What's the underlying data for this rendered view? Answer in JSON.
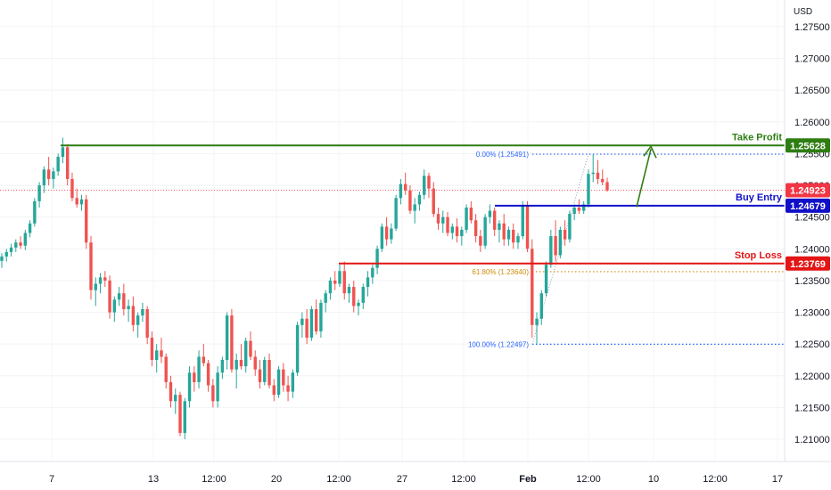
{
  "currency": "USD",
  "chart_data": {
    "type": "candlestick",
    "title": "",
    "x_ticks": [
      "7",
      "13",
      "12:00",
      "20",
      "12:00",
      "27",
      "12:00",
      "Feb",
      "12:00",
      "10",
      "12:00",
      "17"
    ],
    "y_ticks": [
      "1.27500",
      "1.27000",
      "1.26500",
      "1.26000",
      "1.25500",
      "1.25000",
      "1.24500",
      "1.24000",
      "1.23500",
      "1.23000",
      "1.22500",
      "1.22000",
      "1.21500",
      "1.21000"
    ],
    "ylim": [
      1.2065,
      1.2792
    ],
    "colors": {
      "up": "#26a69a",
      "down": "#ef5350",
      "take_profit": "#2e7d12",
      "buy_entry": "#1010c8",
      "stop_loss": "#e31515",
      "fib": "#2962ff",
      "fib_618": "#d08b0a",
      "current": "#f23645"
    },
    "levels": [
      {
        "name": "Take Profit",
        "price": "1.25628",
        "value": 1.25628,
        "color": "#2e7d12"
      },
      {
        "name": "Buy Entry",
        "price": "1.24679",
        "value": 1.24679,
        "color": "#1010c8"
      },
      {
        "name": "Stop Loss",
        "price": "1.23769",
        "value": 1.23769,
        "color": "#e31515"
      }
    ],
    "current_price": {
      "price": "1.24923",
      "value": 1.24923
    },
    "fibonacci": [
      {
        "label": "0.00% (1.25491)",
        "value": 1.25491
      },
      {
        "label": "61.80% (1.23640)",
        "value": 1.2364
      },
      {
        "label": "100.00% (1.22497)",
        "value": 1.22497
      }
    ],
    "candles": [
      [
        1.2381,
        1.2393,
        1.237,
        1.2388
      ],
      [
        1.2388,
        1.24,
        1.238,
        1.2395
      ],
      [
        1.2395,
        1.2408,
        1.2388,
        1.2402
      ],
      [
        1.2402,
        1.2415,
        1.2395,
        1.241
      ],
      [
        1.241,
        1.242,
        1.24,
        1.2405
      ],
      [
        1.2405,
        1.243,
        1.2398,
        1.2425
      ],
      [
        1.2425,
        1.2445,
        1.2418,
        1.244
      ],
      [
        1.244,
        1.248,
        1.2435,
        1.2475
      ],
      [
        1.2475,
        1.2505,
        1.2465,
        1.25
      ],
      [
        1.25,
        1.253,
        1.2488,
        1.2525
      ],
      [
        1.2525,
        1.2545,
        1.25,
        1.251
      ],
      [
        1.251,
        1.2528,
        1.2495,
        1.2522
      ],
      [
        1.2522,
        1.255,
        1.2515,
        1.2545
      ],
      [
        1.2545,
        1.2575,
        1.2535,
        1.256
      ],
      [
        1.256,
        1.2565,
        1.25,
        1.251
      ],
      [
        1.251,
        1.252,
        1.2475,
        1.248
      ],
      [
        1.248,
        1.2495,
        1.2465,
        1.247
      ],
      [
        1.247,
        1.2485,
        1.246,
        1.2478
      ],
      [
        1.2478,
        1.2485,
        1.24,
        1.241
      ],
      [
        1.241,
        1.242,
        1.232,
        1.2335
      ],
      [
        1.2335,
        1.2355,
        1.231,
        1.2345
      ],
      [
        1.2345,
        1.2362,
        1.233,
        1.2355
      ],
      [
        1.2355,
        1.2365,
        1.234,
        1.235
      ],
      [
        1.235,
        1.2358,
        1.229,
        1.23
      ],
      [
        1.23,
        1.2325,
        1.2285,
        1.232
      ],
      [
        1.232,
        1.234,
        1.231,
        1.233
      ],
      [
        1.233,
        1.2345,
        1.2295,
        1.2305
      ],
      [
        1.2305,
        1.232,
        1.2285,
        1.231
      ],
      [
        1.231,
        1.2325,
        1.227,
        1.228
      ],
      [
        1.228,
        1.23,
        1.226,
        1.2295
      ],
      [
        1.2295,
        1.2315,
        1.2285,
        1.2305
      ],
      [
        1.2305,
        1.231,
        1.225,
        1.226
      ],
      [
        1.226,
        1.227,
        1.2215,
        1.2225
      ],
      [
        1.2225,
        1.225,
        1.2205,
        1.224
      ],
      [
        1.224,
        1.226,
        1.222,
        1.223
      ],
      [
        1.223,
        1.2235,
        1.218,
        1.219
      ],
      [
        1.219,
        1.22,
        1.215,
        1.216
      ],
      [
        1.216,
        1.218,
        1.214,
        1.217
      ],
      [
        1.217,
        1.2175,
        1.2105,
        1.211
      ],
      [
        1.211,
        1.2165,
        1.21,
        1.216
      ],
      [
        1.216,
        1.2215,
        1.215,
        1.2205
      ],
      [
        1.2205,
        1.2215,
        1.2175,
        1.219
      ],
      [
        1.219,
        1.224,
        1.218,
        1.223
      ],
      [
        1.223,
        1.225,
        1.2215,
        1.222
      ],
      [
        1.222,
        1.2225,
        1.2175,
        1.2185
      ],
      [
        1.2185,
        1.2195,
        1.215,
        1.216
      ],
      [
        1.216,
        1.2215,
        1.215,
        1.2205
      ],
      [
        1.2205,
        1.223,
        1.2195,
        1.2225
      ],
      [
        1.2225,
        1.23,
        1.221,
        1.2295
      ],
      [
        1.2295,
        1.2305,
        1.2205,
        1.221
      ],
      [
        1.221,
        1.2235,
        1.218,
        1.2225
      ],
      [
        1.2225,
        1.225,
        1.221,
        1.2215
      ],
      [
        1.2215,
        1.226,
        1.2205,
        1.2255
      ],
      [
        1.2255,
        1.227,
        1.2225,
        1.223
      ],
      [
        1.223,
        1.224,
        1.22,
        1.221
      ],
      [
        1.221,
        1.2225,
        1.218,
        1.219
      ],
      [
        1.219,
        1.223,
        1.2185,
        1.2225
      ],
      [
        1.2225,
        1.2235,
        1.218,
        1.2185
      ],
      [
        1.2185,
        1.2195,
        1.216,
        1.217
      ],
      [
        1.217,
        1.2215,
        1.2165,
        1.221
      ],
      [
        1.221,
        1.222,
        1.2175,
        1.2185
      ],
      [
        1.2185,
        1.22,
        1.216,
        1.2175
      ],
      [
        1.2175,
        1.221,
        1.2165,
        1.2205
      ],
      [
        1.2205,
        1.2285,
        1.22,
        1.228
      ],
      [
        1.228,
        1.23,
        1.226,
        1.229
      ],
      [
        1.229,
        1.2305,
        1.225,
        1.226
      ],
      [
        1.226,
        1.231,
        1.2255,
        1.2305
      ],
      [
        1.2305,
        1.232,
        1.2265,
        1.227
      ],
      [
        1.227,
        1.232,
        1.226,
        1.2315
      ],
      [
        1.2315,
        1.2335,
        1.23,
        1.233
      ],
      [
        1.233,
        1.2355,
        1.232,
        1.235
      ],
      [
        1.235,
        1.2365,
        1.2335,
        1.2345
      ],
      [
        1.2345,
        1.2375,
        1.234,
        1.2365
      ],
      [
        1.2365,
        1.238,
        1.232,
        1.233
      ],
      [
        1.233,
        1.2345,
        1.2315,
        1.234
      ],
      [
        1.234,
        1.235,
        1.23,
        1.231
      ],
      [
        1.231,
        1.232,
        1.2295,
        1.2315
      ],
      [
        1.2315,
        1.2345,
        1.2305,
        1.234
      ],
      [
        1.234,
        1.2365,
        1.2325,
        1.2355
      ],
      [
        1.2355,
        1.2375,
        1.2345,
        1.237
      ],
      [
        1.237,
        1.2405,
        1.236,
        1.24
      ],
      [
        1.24,
        1.244,
        1.2395,
        1.2435
      ],
      [
        1.2435,
        1.245,
        1.2405,
        1.2415
      ],
      [
        1.2415,
        1.244,
        1.2408,
        1.2432
      ],
      [
        1.2432,
        1.2485,
        1.2428,
        1.248
      ],
      [
        1.248,
        1.251,
        1.247,
        1.2502
      ],
      [
        1.2502,
        1.252,
        1.2485,
        1.2492
      ],
      [
        1.2492,
        1.25,
        1.2455,
        1.246
      ],
      [
        1.246,
        1.248,
        1.244,
        1.247
      ],
      [
        1.247,
        1.249,
        1.246,
        1.2485
      ],
      [
        1.2485,
        1.2525,
        1.2478,
        1.2515
      ],
      [
        1.2515,
        1.252,
        1.248,
        1.2495
      ],
      [
        1.2495,
        1.2505,
        1.245,
        1.2455
      ],
      [
        1.2455,
        1.2465,
        1.243,
        1.244
      ],
      [
        1.244,
        1.246,
        1.2425,
        1.245
      ],
      [
        1.245,
        1.2458,
        1.242,
        1.2425
      ],
      [
        1.2425,
        1.244,
        1.2415,
        1.2435
      ],
      [
        1.2435,
        1.2448,
        1.241,
        1.242
      ],
      [
        1.242,
        1.2435,
        1.2405,
        1.243
      ],
      [
        1.243,
        1.247,
        1.2425,
        1.2465
      ],
      [
        1.2465,
        1.2475,
        1.244,
        1.2445
      ],
      [
        1.2445,
        1.2455,
        1.241,
        1.242
      ],
      [
        1.242,
        1.243,
        1.2395,
        1.2405
      ],
      [
        1.2405,
        1.2455,
        1.24,
        1.245
      ],
      [
        1.245,
        1.247,
        1.244,
        1.246
      ],
      [
        1.246,
        1.2465,
        1.242,
        1.243
      ],
      [
        1.243,
        1.2445,
        1.241,
        1.244
      ],
      [
        1.244,
        1.2455,
        1.2405,
        1.2415
      ],
      [
        1.2415,
        1.2435,
        1.2405,
        1.243
      ],
      [
        1.243,
        1.244,
        1.24,
        1.241
      ],
      [
        1.241,
        1.2425,
        1.24,
        1.242
      ],
      [
        1.242,
        1.2475,
        1.2415,
        1.2468
      ],
      [
        1.2468,
        1.2475,
        1.2395,
        1.24
      ],
      [
        1.24,
        1.2415,
        1.226,
        1.228
      ],
      [
        1.228,
        1.23,
        1.225,
        1.229
      ],
      [
        1.229,
        1.2335,
        1.228,
        1.233
      ],
      [
        1.233,
        1.238,
        1.2325,
        1.2375
      ],
      [
        1.2375,
        1.243,
        1.237,
        1.242
      ],
      [
        1.242,
        1.2445,
        1.238,
        1.239
      ],
      [
        1.239,
        1.2435,
        1.2385,
        1.243
      ],
      [
        1.243,
        1.2445,
        1.2405,
        1.2415
      ],
      [
        1.2415,
        1.246,
        1.241,
        1.2455
      ],
      [
        1.2455,
        1.247,
        1.2445,
        1.2465
      ],
      [
        1.2465,
        1.2478,
        1.2455,
        1.246
      ],
      [
        1.246,
        1.2475,
        1.2455,
        1.247
      ],
      [
        1.247,
        1.2525,
        1.2465,
        1.2518
      ],
      [
        1.2518,
        1.2549,
        1.2505,
        1.252
      ],
      [
        1.252,
        1.254,
        1.2502,
        1.251
      ],
      [
        1.251,
        1.2525,
        1.25,
        1.2505
      ],
      [
        1.2505,
        1.2512,
        1.249,
        1.2492
      ]
    ]
  }
}
